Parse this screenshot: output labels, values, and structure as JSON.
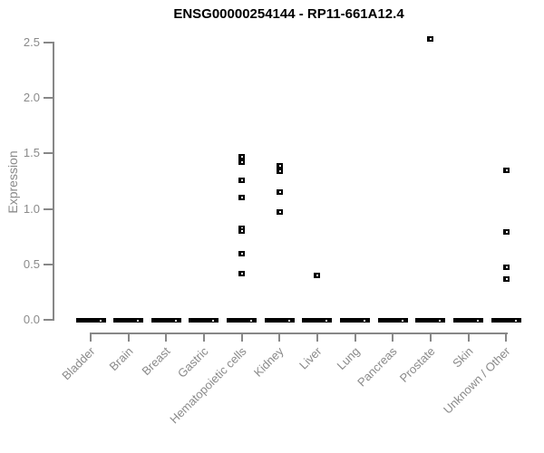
{
  "page": {
    "background": "#ffffff"
  },
  "chart_data": {
    "type": "scatter",
    "subtype": "strip-plot-by-category",
    "title": "ENSG00000254144 - RP11-661A12.4",
    "xlabel": "",
    "ylabel": "Expression",
    "ylim": [
      0,
      2.6
    ],
    "yticks": [
      0.0,
      0.5,
      1.0,
      1.5,
      2.0,
      2.5
    ],
    "ytick_labels": [
      "0.0",
      "0.5",
      "1.0",
      "1.5",
      "2.0",
      "2.5"
    ],
    "grid": false,
    "legend": false,
    "marker": "tiny open black square",
    "categories": [
      "Bladder",
      "Brain",
      "Breast",
      "Gastric",
      "Hematopoietic cells",
      "Kidney",
      "Liver",
      "Lung",
      "Pancreas",
      "Prostate",
      "Skin",
      "Unknown / Other"
    ],
    "series": [
      {
        "category": "Bladder",
        "zero_cluster": true,
        "values": []
      },
      {
        "category": "Brain",
        "zero_cluster": true,
        "values": []
      },
      {
        "category": "Breast",
        "zero_cluster": true,
        "values": []
      },
      {
        "category": "Gastric",
        "zero_cluster": true,
        "values": []
      },
      {
        "category": "Hematopoietic cells",
        "zero_cluster": true,
        "values": [
          1.47,
          1.42,
          1.26,
          1.1,
          0.83,
          0.8,
          0.6,
          0.42
        ]
      },
      {
        "category": "Kidney",
        "zero_cluster": true,
        "values": [
          1.39,
          1.34,
          1.15,
          0.97
        ]
      },
      {
        "category": "Liver",
        "zero_cluster": true,
        "values": [
          0.4
        ]
      },
      {
        "category": "Lung",
        "zero_cluster": true,
        "values": []
      },
      {
        "category": "Pancreas",
        "zero_cluster": true,
        "values": []
      },
      {
        "category": "Prostate",
        "zero_cluster": true,
        "values": [
          2.53
        ]
      },
      {
        "category": "Skin",
        "zero_cluster": true,
        "values": []
      },
      {
        "category": "Unknown / Other",
        "zero_cluster": true,
        "values": [
          1.35,
          0.79,
          0.48,
          0.37
        ]
      }
    ],
    "zero_cluster_note": "Every category shows a dense cluster of overlapping points at expression 0, rendered as a thick black dash on the baseline.",
    "colors": {
      "point": "#000000",
      "axis": "#878787",
      "tick_text": "#8a8a8a",
      "title_text": "#000000",
      "background": "#ffffff"
    }
  }
}
